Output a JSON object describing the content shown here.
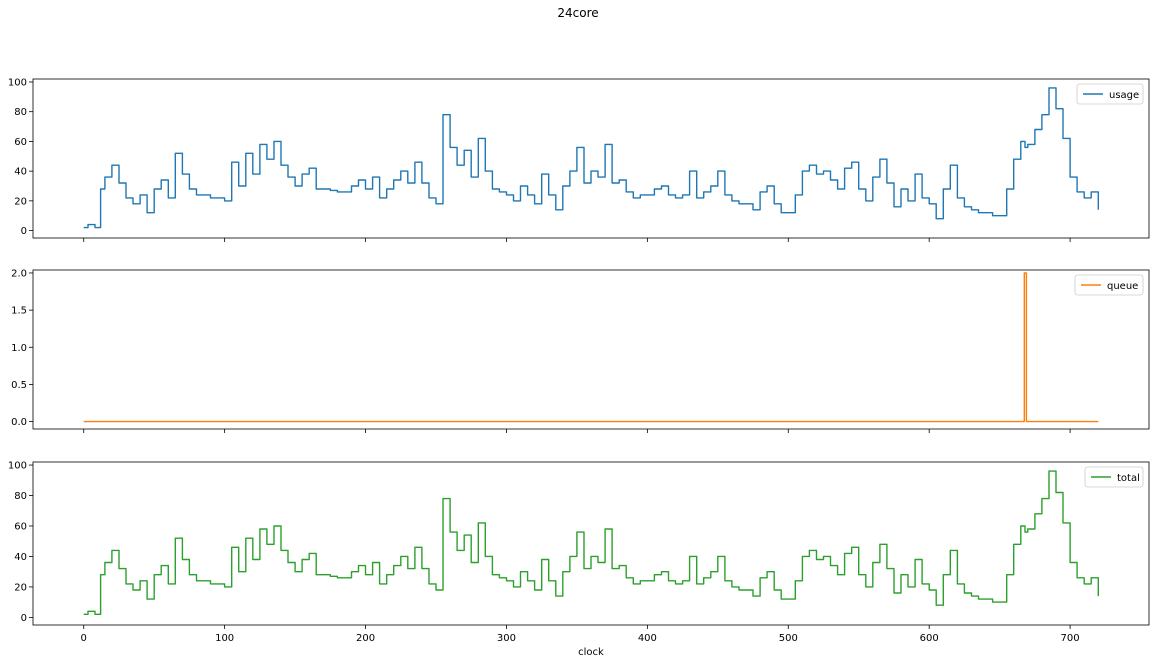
{
  "figure": {
    "title": "24core"
  },
  "chart_data": [
    {
      "type": "line",
      "title": "",
      "xlabel": "",
      "ylabel": "",
      "xlim": [
        -36,
        756
      ],
      "ylim": [
        -5,
        102
      ],
      "xticks": [
        0,
        100,
        200,
        300,
        400,
        500,
        600,
        700
      ],
      "yticks": [
        0,
        20,
        40,
        60,
        80,
        100
      ],
      "ytick_labels": [
        "0",
        "20",
        "40",
        "60",
        "80",
        "100"
      ],
      "show_xtick_labels": false,
      "legend_position": "upper right",
      "grid": false,
      "series": [
        {
          "name": "usage",
          "color": "#1f77b4",
          "x": [
            0,
            3,
            8,
            12,
            15,
            20,
            25,
            30,
            35,
            40,
            45,
            50,
            55,
            60,
            65,
            70,
            75,
            80,
            85,
            90,
            95,
            100,
            105,
            110,
            115,
            120,
            125,
            130,
            135,
            140,
            145,
            150,
            155,
            160,
            165,
            170,
            175,
            180,
            185,
            190,
            195,
            200,
            205,
            210,
            215,
            220,
            225,
            230,
            235,
            240,
            245,
            250,
            255,
            260,
            265,
            270,
            275,
            280,
            285,
            290,
            295,
            300,
            305,
            310,
            315,
            320,
            325,
            330,
            335,
            340,
            345,
            350,
            355,
            360,
            365,
            370,
            375,
            380,
            385,
            390,
            395,
            400,
            405,
            410,
            415,
            420,
            425,
            430,
            435,
            440,
            445,
            450,
            455,
            460,
            465,
            470,
            475,
            480,
            485,
            490,
            495,
            500,
            505,
            510,
            515,
            520,
            525,
            530,
            535,
            540,
            545,
            550,
            555,
            560,
            565,
            570,
            575,
            580,
            585,
            590,
            595,
            600,
            605,
            610,
            615,
            620,
            625,
            630,
            635,
            640,
            645,
            650,
            655,
            660,
            665,
            668,
            670,
            675,
            680,
            685,
            690,
            695,
            700,
            705,
            710,
            715,
            720
          ],
          "y": [
            2,
            4,
            2,
            28,
            36,
            44,
            32,
            22,
            18,
            24,
            12,
            28,
            34,
            22,
            52,
            38,
            28,
            24,
            24,
            22,
            22,
            20,
            46,
            30,
            52,
            38,
            58,
            48,
            60,
            44,
            36,
            30,
            38,
            42,
            28,
            28,
            27,
            26,
            26,
            30,
            34,
            28,
            36,
            22,
            28,
            34,
            40,
            32,
            46,
            32,
            22,
            18,
            78,
            56,
            44,
            54,
            36,
            62,
            40,
            28,
            26,
            24,
            20,
            30,
            24,
            18,
            38,
            24,
            14,
            30,
            40,
            56,
            32,
            40,
            36,
            58,
            32,
            34,
            26,
            22,
            24,
            24,
            28,
            30,
            24,
            22,
            24,
            40,
            22,
            26,
            30,
            40,
            24,
            20,
            18,
            18,
            14,
            26,
            30,
            18,
            12,
            12,
            24,
            40,
            44,
            38,
            40,
            34,
            28,
            42,
            46,
            28,
            20,
            36,
            48,
            32,
            16,
            28,
            20,
            38,
            22,
            18,
            8,
            28,
            44,
            22,
            16,
            14,
            12,
            12,
            10,
            10,
            28,
            48,
            60,
            56,
            58,
            68,
            78,
            96,
            82,
            62,
            36,
            26,
            22,
            26,
            14
          ]
        }
      ]
    },
    {
      "type": "line",
      "title": "",
      "xlabel": "",
      "ylabel": "",
      "xlim": [
        -36,
        756
      ],
      "ylim": [
        -0.1,
        2.04
      ],
      "xticks": [
        0,
        100,
        200,
        300,
        400,
        500,
        600,
        700
      ],
      "yticks": [
        0,
        0.5,
        1.0,
        1.5,
        2.0
      ],
      "ytick_labels": [
        "0.0",
        "0.5",
        "1.0",
        "1.5",
        "2.0"
      ],
      "show_xtick_labels": false,
      "legend_position": "upper right",
      "grid": false,
      "series": [
        {
          "name": "queue",
          "color": "#ff7f0e",
          "x": [
            0,
            667,
            667.5,
            668.5,
            669,
            720
          ],
          "y": [
            0,
            0,
            2,
            2,
            0,
            0
          ]
        }
      ]
    },
    {
      "type": "line",
      "title": "",
      "xlabel": "clock",
      "ylabel": "",
      "xlim": [
        -36,
        756
      ],
      "ylim": [
        -5,
        102
      ],
      "xticks": [
        0,
        100,
        200,
        300,
        400,
        500,
        600,
        700
      ],
      "xtick_labels": [
        "0",
        "100",
        "200",
        "300",
        "400",
        "500",
        "600",
        "700"
      ],
      "yticks": [
        0,
        20,
        40,
        60,
        80,
        100
      ],
      "ytick_labels": [
        "0",
        "20",
        "40",
        "60",
        "80",
        "100"
      ],
      "show_xtick_labels": true,
      "legend_position": "upper right",
      "grid": false,
      "series": [
        {
          "name": "total",
          "color": "#2ca02c",
          "x": [
            0,
            3,
            8,
            12,
            15,
            20,
            25,
            30,
            35,
            40,
            45,
            50,
            55,
            60,
            65,
            70,
            75,
            80,
            85,
            90,
            95,
            100,
            105,
            110,
            115,
            120,
            125,
            130,
            135,
            140,
            145,
            150,
            155,
            160,
            165,
            170,
            175,
            180,
            185,
            190,
            195,
            200,
            205,
            210,
            215,
            220,
            225,
            230,
            235,
            240,
            245,
            250,
            255,
            260,
            265,
            270,
            275,
            280,
            285,
            290,
            295,
            300,
            305,
            310,
            315,
            320,
            325,
            330,
            335,
            340,
            345,
            350,
            355,
            360,
            365,
            370,
            375,
            380,
            385,
            390,
            395,
            400,
            405,
            410,
            415,
            420,
            425,
            430,
            435,
            440,
            445,
            450,
            455,
            460,
            465,
            470,
            475,
            480,
            485,
            490,
            495,
            500,
            505,
            510,
            515,
            520,
            525,
            530,
            535,
            540,
            545,
            550,
            555,
            560,
            565,
            570,
            575,
            580,
            585,
            590,
            595,
            600,
            605,
            610,
            615,
            620,
            625,
            630,
            635,
            640,
            645,
            650,
            655,
            660,
            665,
            668,
            670,
            675,
            680,
            685,
            690,
            695,
            700,
            705,
            710,
            715,
            720
          ],
          "y": [
            2,
            4,
            2,
            28,
            36,
            44,
            32,
            22,
            18,
            24,
            12,
            28,
            34,
            22,
            52,
            38,
            28,
            24,
            24,
            22,
            22,
            20,
            46,
            30,
            52,
            38,
            58,
            48,
            60,
            44,
            36,
            30,
            38,
            42,
            28,
            28,
            27,
            26,
            26,
            30,
            34,
            28,
            36,
            22,
            28,
            34,
            40,
            32,
            46,
            32,
            22,
            18,
            78,
            56,
            44,
            54,
            36,
            62,
            40,
            28,
            26,
            24,
            20,
            30,
            24,
            18,
            38,
            24,
            14,
            30,
            40,
            56,
            32,
            40,
            36,
            58,
            32,
            34,
            26,
            22,
            24,
            24,
            28,
            30,
            24,
            22,
            24,
            40,
            22,
            26,
            30,
            40,
            24,
            20,
            18,
            18,
            14,
            26,
            30,
            18,
            12,
            12,
            24,
            40,
            44,
            38,
            40,
            34,
            28,
            42,
            46,
            28,
            20,
            36,
            48,
            32,
            16,
            28,
            20,
            38,
            22,
            18,
            8,
            28,
            44,
            22,
            16,
            14,
            12,
            12,
            10,
            10,
            28,
            48,
            60,
            56,
            58,
            68,
            78,
            96,
            82,
            62,
            36,
            26,
            22,
            26,
            14
          ]
        }
      ]
    }
  ]
}
